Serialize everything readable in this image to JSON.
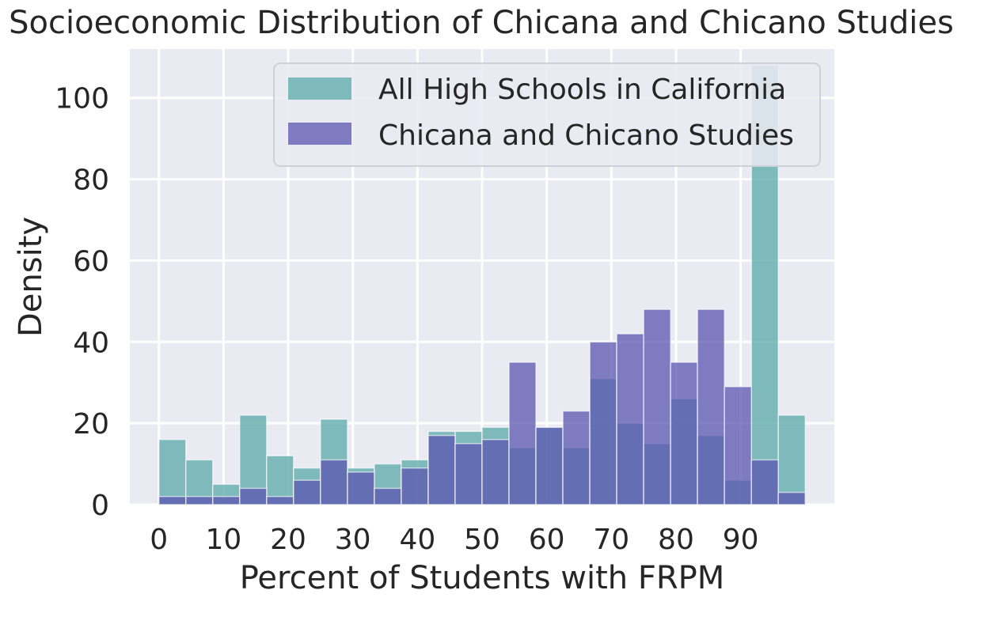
{
  "chart_data": {
    "type": "bar",
    "title": "Socioeconomic Distribution of Chicana and Chicano Studies",
    "xlabel": "Percent of Students with FRPM",
    "ylabel": "Density",
    "xlim": [
      -4.5,
      104.5
    ],
    "ylim": [
      0,
      112
    ],
    "xticks": [
      0,
      10,
      20,
      30,
      40,
      50,
      60,
      70,
      80,
      90
    ],
    "yticks": [
      0,
      20,
      40,
      60,
      80,
      100
    ],
    "grid": true,
    "legend_position": "top-right",
    "bin_edges": [
      0,
      4.17,
      8.33,
      12.5,
      16.67,
      20.83,
      25,
      29.17,
      33.33,
      37.5,
      41.67,
      45.83,
      50,
      54.17,
      58.33,
      62.5,
      66.67,
      70.83,
      75,
      79.17,
      83.33,
      87.5,
      91.67,
      95.83,
      100
    ],
    "series": [
      {
        "name": "All High Schools in California",
        "color": "#5aa8a8",
        "values": [
          16,
          11,
          5,
          22,
          12,
          9,
          21,
          9,
          10,
          11,
          18,
          18,
          19,
          14,
          19,
          14,
          31,
          20,
          15,
          26,
          17,
          6,
          108,
          22
        ]
      },
      {
        "name": "Chicana and Chicano Studies",
        "color": "#5b55b0",
        "values": [
          2,
          2,
          2,
          4,
          2,
          6,
          11,
          8,
          4,
          9,
          17,
          15,
          16,
          35,
          19,
          23,
          40,
          42,
          48,
          35,
          48,
          29,
          11,
          3
        ]
      }
    ]
  }
}
